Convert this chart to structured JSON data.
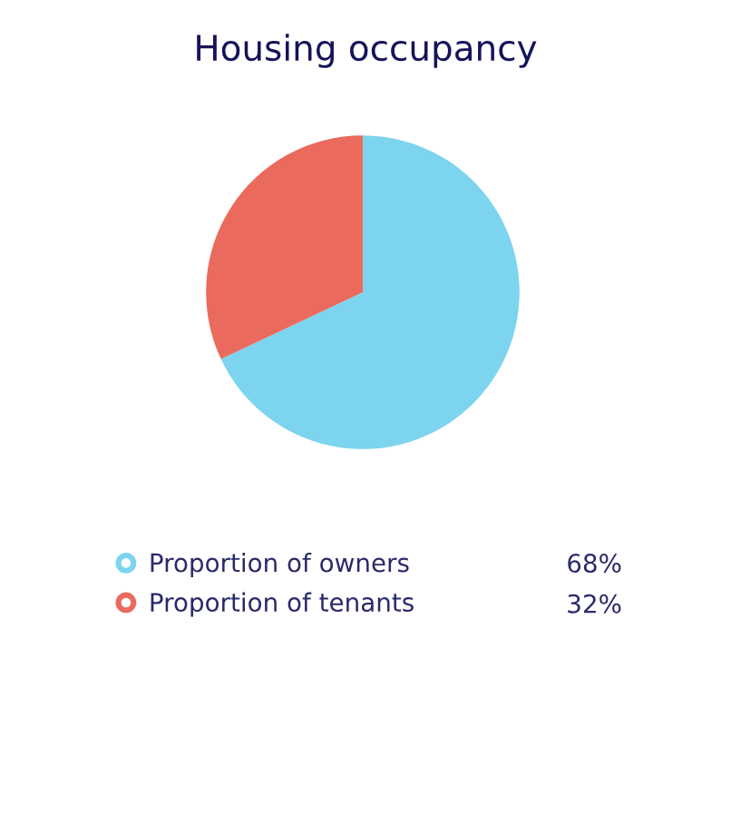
{
  "chart_data": {
    "type": "pie",
    "title": "Housing occupancy",
    "categories": [
      "Proportion of owners",
      "Proportion of tenants"
    ],
    "values": [
      68,
      32
    ],
    "colors": [
      "#7dd4ee",
      "#ea6a5e"
    ],
    "value_labels": [
      "68%",
      "32%"
    ],
    "legend": "bottom"
  }
}
